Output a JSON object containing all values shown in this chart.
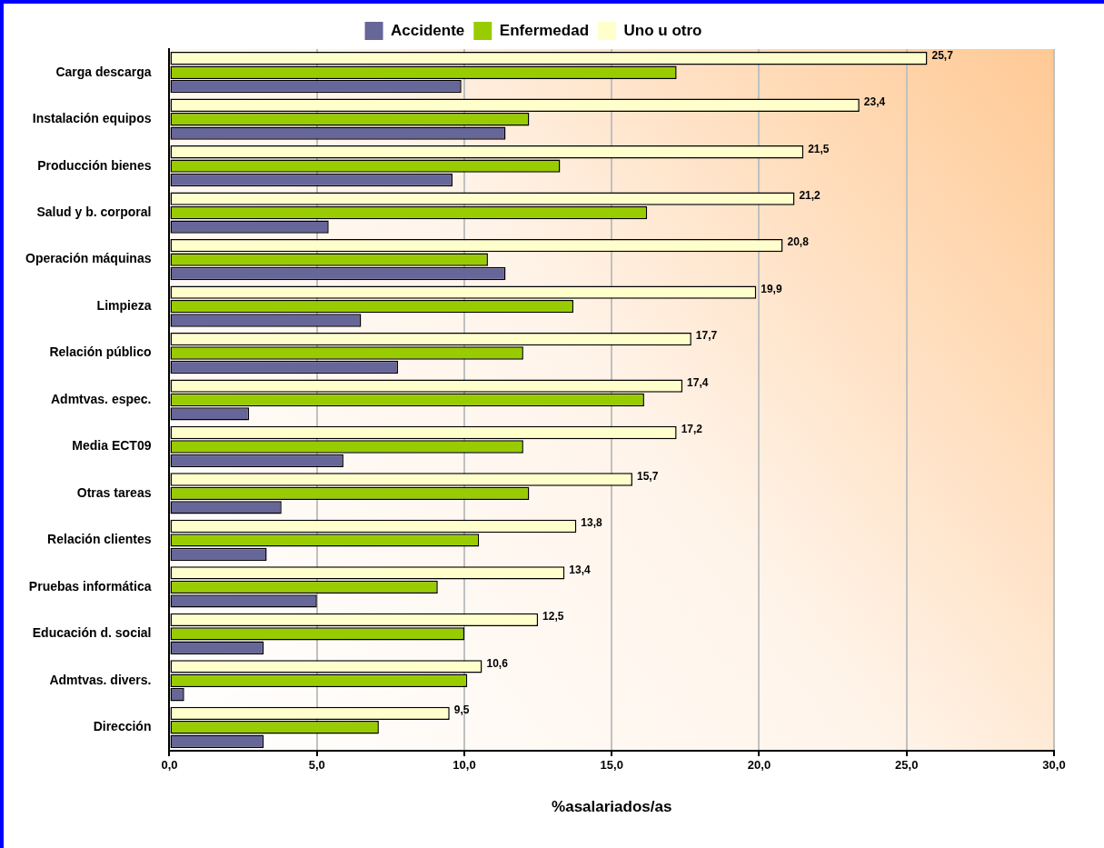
{
  "chart_data": {
    "type": "bar",
    "orientation": "horizontal",
    "xlabel": "%asalariados/as",
    "categories": [
      "Carga descarga",
      "Instalación equipos",
      "Producción bienes",
      "Salud y b. corporal",
      "Operación máquinas",
      "Limpieza",
      "Relación público",
      "Admtvas. espec.",
      "Media ECT09",
      "Otras tareas",
      "Relación clientes",
      "Pruebas informática",
      "Educación d. social",
      "Admtvas. divers.",
      "Dirección"
    ],
    "series": [
      {
        "name": "Accidente",
        "color": "#666699",
        "values": [
          9.9,
          11.4,
          9.6,
          5.4,
          11.4,
          6.5,
          7.75,
          2.7,
          5.9,
          3.8,
          3.3,
          5.0,
          3.2,
          0.5,
          3.2
        ]
      },
      {
        "name": "Enfermedad",
        "color": "#99cc00",
        "values": [
          17.2,
          12.2,
          13.25,
          16.2,
          10.8,
          13.7,
          12.0,
          16.1,
          12.0,
          12.2,
          10.5,
          9.1,
          10.0,
          10.1,
          7.1
        ]
      },
      {
        "name": "Uno u otro",
        "color": "#ffffcc",
        "values": [
          25.7,
          23.4,
          21.5,
          21.2,
          20.8,
          19.9,
          17.7,
          17.4,
          17.2,
          15.7,
          13.8,
          13.4,
          12.5,
          10.6,
          9.5
        ],
        "value_labels": [
          "25,7",
          "23,4",
          "21,5",
          "21,2",
          "20,8",
          "19,9",
          "17,7",
          "17,4",
          "17,2",
          "15,7",
          "13,8",
          "13,4",
          "12,5",
          "10,6",
          "9,5"
        ]
      }
    ],
    "xlim": [
      0,
      30
    ],
    "xticks": [
      {
        "value": 0,
        "label": "0,0"
      },
      {
        "value": 5,
        "label": "5,0"
      },
      {
        "value": 10,
        "label": "10,0"
      },
      {
        "value": 15,
        "label": "15,0"
      },
      {
        "value": 20,
        "label": "20,0"
      },
      {
        "value": 25,
        "label": "25,0"
      },
      {
        "value": 30,
        "label": "30,0"
      }
    ],
    "grid": "x",
    "legend": "top"
  }
}
